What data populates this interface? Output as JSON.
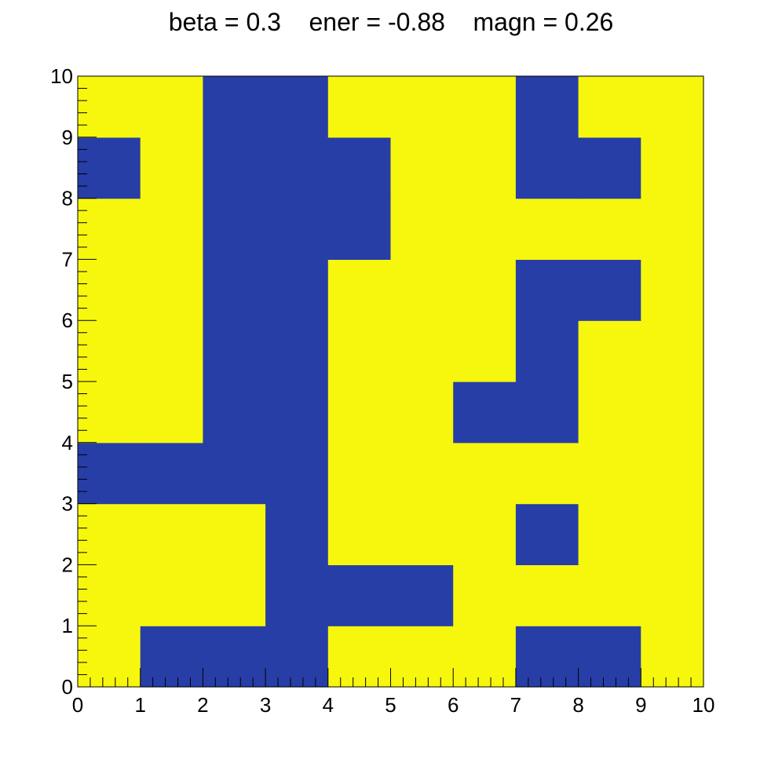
{
  "chart_data": {
    "type": "heatmap",
    "title": "beta = 0.3    ener = -0.88    magn = 0.26",
    "xlabel": "",
    "ylabel": "",
    "xlim": [
      0,
      10
    ],
    "ylim": [
      0,
      10
    ],
    "x_ticks": [
      "0",
      "1",
      "2",
      "3",
      "4",
      "5",
      "6",
      "7",
      "8",
      "9",
      "10"
    ],
    "y_ticks": [
      "0",
      "1",
      "2",
      "3",
      "4",
      "5",
      "6",
      "7",
      "8",
      "9",
      "10"
    ],
    "grid": false,
    "legend": "none",
    "colors": {
      "up": "#f7f70d",
      "down": "#273ea6"
    },
    "rows_from_bottom": [
      [
        1,
        -1,
        -1,
        -1,
        1,
        1,
        1,
        -1,
        -1,
        1
      ],
      [
        1,
        1,
        1,
        -1,
        -1,
        -1,
        1,
        1,
        1,
        1
      ],
      [
        1,
        1,
        1,
        -1,
        1,
        1,
        1,
        -1,
        1,
        1
      ],
      [
        -1,
        -1,
        -1,
        -1,
        1,
        1,
        1,
        1,
        1,
        1
      ],
      [
        1,
        1,
        -1,
        -1,
        1,
        1,
        -1,
        -1,
        1,
        1
      ],
      [
        1,
        1,
        -1,
        -1,
        1,
        1,
        1,
        -1,
        1,
        1
      ],
      [
        1,
        1,
        -1,
        -1,
        1,
        1,
        1,
        -1,
        -1,
        1
      ],
      [
        1,
        1,
        -1,
        -1,
        -1,
        1,
        1,
        1,
        1,
        1
      ],
      [
        -1,
        1,
        -1,
        -1,
        -1,
        1,
        1,
        -1,
        -1,
        1
      ],
      [
        1,
        1,
        -1,
        -1,
        1,
        1,
        1,
        -1,
        1,
        1
      ]
    ]
  }
}
